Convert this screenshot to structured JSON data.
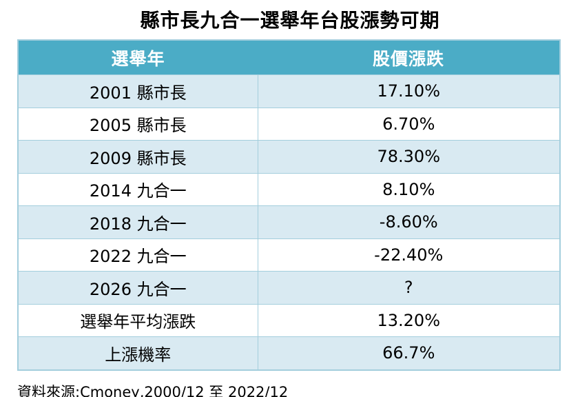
{
  "title": "縣市長九合一選舉年台股漲勢可期",
  "source_note": "資料來源:Cmoney,2000/12 至 2022/12",
  "colors": {
    "header_bg": "#4bacc6",
    "header_text": "#ffffff",
    "row_alt_bg": "#d9eaf2",
    "row_plain_bg": "#ffffff",
    "border": "#a3cedd",
    "body_text": "#000000"
  },
  "table": {
    "columns": [
      "選舉年",
      "股價漲跌"
    ],
    "rows": [
      [
        "2001 縣市長",
        "17.10%"
      ],
      [
        "2005 縣市長",
        "6.70%"
      ],
      [
        "2009 縣市長",
        "78.30%"
      ],
      [
        "2014 九合一",
        "8.10%"
      ],
      [
        "2018 九合一",
        "-8.60%"
      ],
      [
        "2022 九合一",
        "-22.40%"
      ],
      [
        "2026 九合一",
        "?"
      ],
      [
        "選舉年平均漲跌",
        "13.20%"
      ],
      [
        "上漲機率",
        "66.7%"
      ]
    ]
  },
  "chart_data": {
    "type": "table",
    "title": "縣市長九合一選舉年台股漲勢可期",
    "columns": [
      "選舉年",
      "股價漲跌"
    ],
    "rows": [
      [
        "2001 縣市長",
        "17.10%"
      ],
      [
        "2005 縣市長",
        "6.70%"
      ],
      [
        "2009 縣市長",
        "78.30%"
      ],
      [
        "2014 九合一",
        "8.10%"
      ],
      [
        "2018 九合一",
        "-8.60%"
      ],
      [
        "2022 九合一",
        "-22.40%"
      ],
      [
        "2026 九合一",
        "?"
      ],
      [
        "選舉年平均漲跌",
        "13.20%"
      ],
      [
        "上漲機率",
        "66.7%"
      ]
    ],
    "election_years": [
      2001,
      2005,
      2009,
      2014,
      2018,
      2022,
      2026
    ],
    "change_pct": [
      17.1,
      6.7,
      78.3,
      8.1,
      -8.6,
      -22.4,
      null
    ],
    "average_change_pct": 13.2,
    "up_probability_pct": 66.7,
    "source": "資料來源:Cmoney,2000/12 至 2022/12"
  }
}
